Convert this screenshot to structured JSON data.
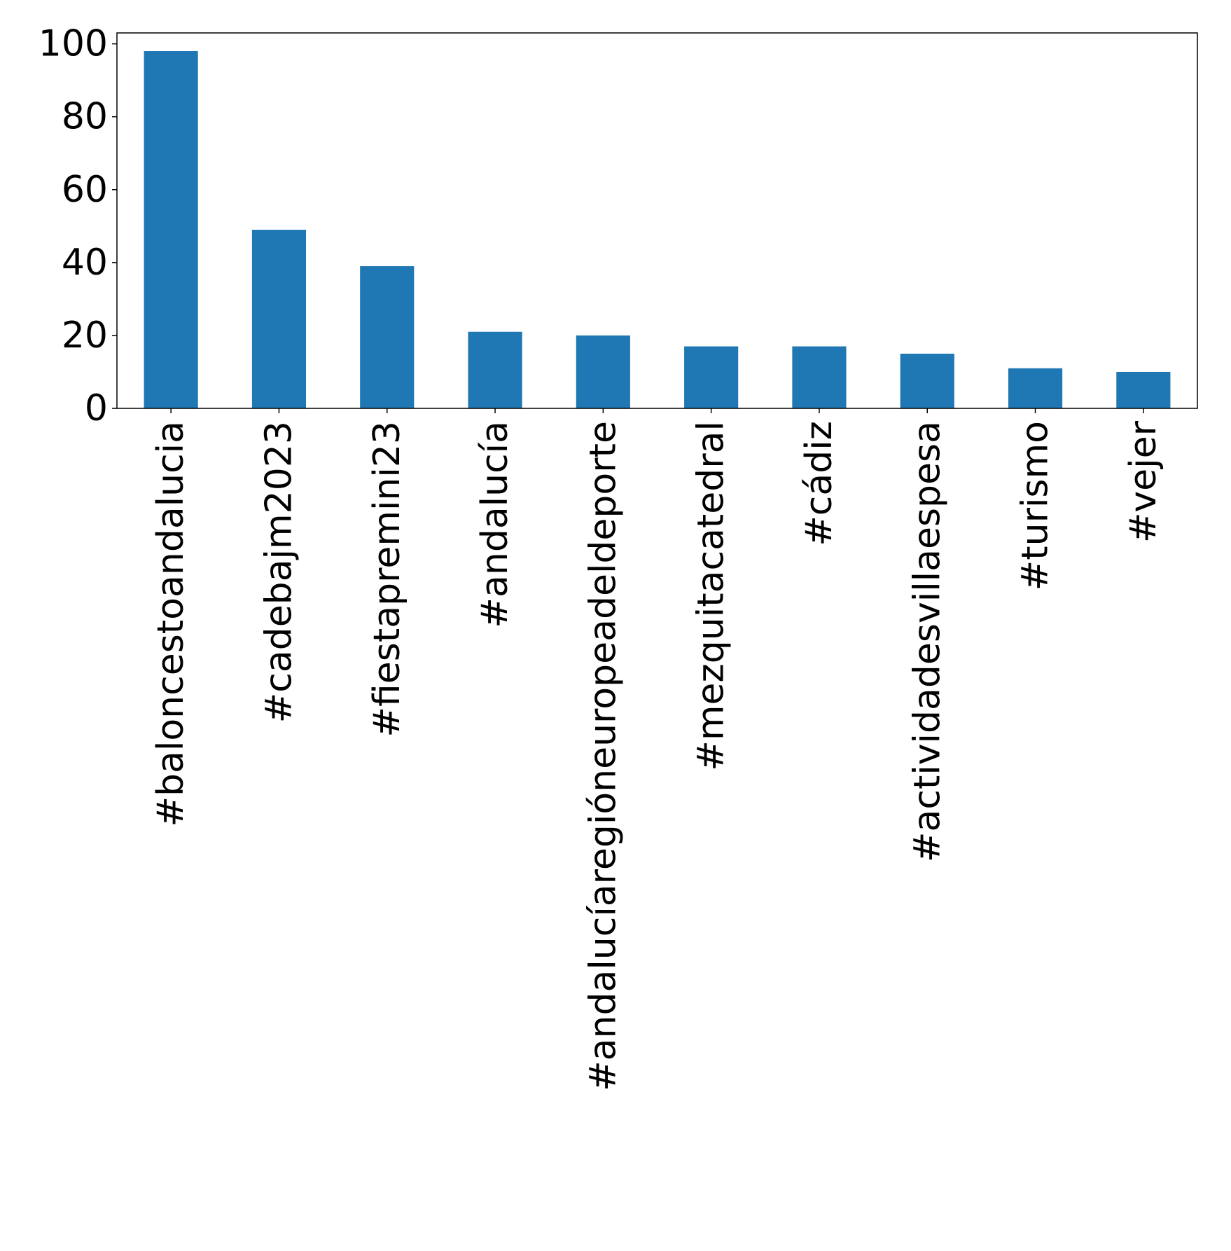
{
  "chart_data": {
    "type": "bar",
    "title": "",
    "xlabel": "",
    "ylabel": "",
    "categories": [
      "#baloncestoandalucia",
      "#cadebajm2023",
      "#fiestapremini23",
      "#andalucía",
      "#andalucíaregióneuropeadeldeporte",
      "#mezquitacatedral",
      "#cádiz",
      "#actividadesvillaespesa",
      "#turismo",
      "#vejer"
    ],
    "values": [
      98,
      49,
      39,
      21,
      20,
      17,
      17,
      15,
      11,
      10
    ],
    "ylim": [
      0,
      103
    ],
    "yticks": [
      0,
      20,
      40,
      60,
      80,
      100
    ],
    "grid": false,
    "legend": "none",
    "bar_color": "#1f77b4"
  }
}
